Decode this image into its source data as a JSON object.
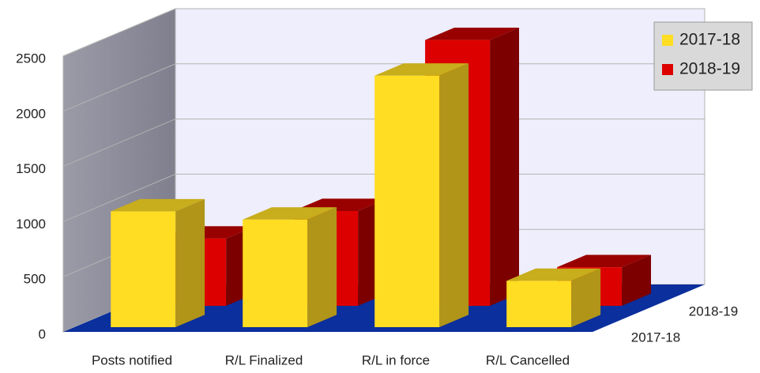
{
  "chart_data": {
    "type": "bar3d",
    "categories": [
      "Posts notified",
      "R/L Finalized",
      "R/L in force",
      "R/L Cancelled"
    ],
    "series": [
      {
        "name": "2017-18",
        "color": "#ffdd22",
        "values": [
          1050,
          975,
          2280,
          420
        ]
      },
      {
        "name": "2018-19",
        "color": "#dd0000",
        "values": [
          610,
          860,
          2410,
          350
        ]
      }
    ],
    "ylim": [
      0,
      2500
    ],
    "yticks": [
      0,
      500,
      1000,
      1500,
      2000,
      2500
    ],
    "grid": true,
    "legend": "top-right"
  }
}
